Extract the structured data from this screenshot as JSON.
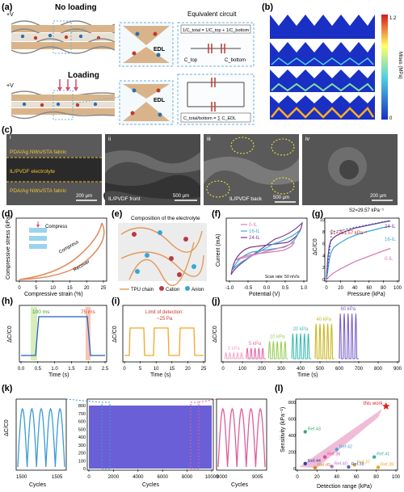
{
  "panel_labels": [
    "(a)",
    "(b)",
    "(c)",
    "(d)",
    "(e)",
    "(f)",
    "(g)",
    "(h)",
    "(i)",
    "(j)",
    "(k)",
    "(l)"
  ],
  "a": {
    "top_state": "No loading",
    "bottom_state": "Loading",
    "voltage": "+V",
    "edl": "EDL",
    "eq_title": "Equivalent circuit",
    "eq_formula": "1/C_total = 1/C_top + 1/C_bottom",
    "c_top": "C_top",
    "c_bottom": "C_bottom",
    "c_sum": "C_total/bottom = ∑ C_EDL"
  },
  "b": {
    "colorbar_title": "Mises (MPa)",
    "cb_max": "1.2",
    "cb_min": "0",
    "colors": {
      "high": "#d7191c",
      "mid": "#ffff66",
      "low": "#1a2fc4"
    }
  },
  "c": {
    "panels": [
      "i",
      "ii",
      "iii",
      "iv"
    ],
    "labels": {
      "top_fabric": "PDA/Ag NWs/STA fabric",
      "electrolyte": "IL/PVDF electrolyte",
      "bottom_fabric": "PDA/Ag NWs/STA fabric",
      "front": "IL/PVDF front",
      "back": "IL/PVDF back"
    },
    "scale_bars": [
      "200 μm",
      "500 μm",
      "500 μm",
      "200 μm"
    ]
  },
  "d": {
    "ylabel": "Compressive stress (kPa)",
    "xlabel": "Compressive strain (%)",
    "compress": "Compress",
    "compress2": "Compress",
    "recover": "Recover",
    "xticks": [
      "0",
      "5",
      "10",
      "15",
      "20",
      "25"
    ]
  },
  "e": {
    "title": "Composition of the electrolyte",
    "legend": [
      "TPU chain",
      "Cation",
      "Anion"
    ]
  },
  "chart_data": [
    {
      "id": "f",
      "type": "line",
      "xlabel": "Potential (V)",
      "ylabel": "Current (mA)",
      "xlim": [
        -1.0,
        1.0
      ],
      "xticks": [
        "-1.0",
        "-0.5",
        "0.0",
        "0.5",
        "1.0"
      ],
      "annotation": "Scan rate: 50 mV/s",
      "series": [
        {
          "name": "0-IL",
          "color": "#d77fb4"
        },
        {
          "name": "16-IL",
          "color": "#43a8d8"
        },
        {
          "name": "24-IL",
          "color": "#7b3d91"
        }
      ]
    },
    {
      "id": "g",
      "type": "line",
      "xlabel": "Pressure (kPa)",
      "ylabel": "ΔC/C0",
      "xlim": [
        0,
        100
      ],
      "ylim": [
        0,
        10
      ],
      "xticks": [
        "0",
        "20",
        "40",
        "60",
        "80",
        "100"
      ],
      "yticks": [
        "0",
        "2",
        "4",
        "6",
        "8",
        "10"
      ],
      "annotations": [
        "S2=29.57 kPa⁻¹",
        "S1=751.57 kPa⁻¹"
      ],
      "series": [
        {
          "name": "24-IL",
          "color": "#7b3d91",
          "x": [
            0,
            1,
            2,
            4,
            6,
            10,
            15,
            20,
            30,
            40,
            60,
            80,
            90
          ],
          "y": [
            0,
            1.8,
            3.6,
            5.6,
            6.4,
            7.0,
            7.4,
            7.7,
            8.2,
            8.6,
            9.1,
            9.6,
            9.8
          ]
        },
        {
          "name": "16-IL",
          "color": "#43a8d8",
          "x": [
            0,
            2,
            4,
            6,
            10,
            15,
            20,
            30,
            40,
            60,
            80,
            90
          ],
          "y": [
            0,
            1.6,
            3.2,
            4.4,
            5.3,
            5.8,
            6.2,
            6.9,
            7.4,
            8.1,
            8.7,
            8.9
          ]
        },
        {
          "name": "0-IL",
          "color": "#d77fb4",
          "x": [
            0,
            5,
            10,
            20,
            30,
            40,
            60,
            80,
            90
          ],
          "y": [
            0,
            0.6,
            1.1,
            1.8,
            2.4,
            3.0,
            3.9,
            4.8,
            5.2
          ]
        }
      ]
    },
    {
      "id": "h",
      "type": "line",
      "xlabel": "Time (s)",
      "ylabel": "ΔC/C0",
      "xlim": [
        0,
        2.5
      ],
      "xticks": [
        "0.0",
        "0.5",
        "1.0",
        "1.5",
        "2.0",
        "2.5"
      ],
      "annotations": [
        "100 ms",
        "75 ms"
      ],
      "series": [
        {
          "x": [
            0,
            0.45,
            0.55,
            1.75,
            1.85,
            2.5
          ],
          "y": [
            0,
            0,
            1,
            1,
            0,
            0
          ],
          "color": "#1f5fbf"
        }
      ]
    },
    {
      "id": "i",
      "type": "line",
      "xlabel": "Time (s)",
      "ylabel": "ΔC/C0",
      "xlim": [
        0,
        25
      ],
      "xticks": [
        "0",
        "5",
        "10",
        "15",
        "20",
        "25"
      ],
      "annotation": "Limit of detection: ~25 Pa",
      "series": [
        {
          "color": "#f5a623"
        }
      ]
    },
    {
      "id": "j",
      "type": "line",
      "xlabel": "Time (s)",
      "ylabel": "ΔC/C0",
      "xlim": [
        0,
        900
      ],
      "xticks": [
        "0",
        "100",
        "200",
        "300",
        "400",
        "500",
        "600",
        "700",
        "800",
        "900"
      ],
      "levels": [
        {
          "label": "3 kPa",
          "color": "#f2a9c9",
          "t0": 10,
          "amp": 0.12
        },
        {
          "label": "5 kPa",
          "color": "#e56ba7",
          "t0": 120,
          "amp": 0.22
        },
        {
          "label": "10 kPa",
          "color": "#9ccf5a",
          "t0": 235,
          "amp": 0.36
        },
        {
          "label": "20 kPa",
          "color": "#3dbdb0",
          "t0": 355,
          "amp": 0.52
        },
        {
          "label": "40 kPa",
          "color": "#c8b820",
          "t0": 475,
          "amp": 0.72
        },
        {
          "label": "60 kPa",
          "color": "#7b62c9",
          "t0": 600,
          "amp": 0.93
        }
      ]
    },
    {
      "id": "k",
      "type": "line",
      "ylabel": "ΔC/C0",
      "xlabel": "Cycles",
      "left": {
        "xticks": [
          "1500",
          "1505"
        ],
        "color": "#3a9bd5"
      },
      "middle": {
        "xticks": [
          "0",
          "2000",
          "4000",
          "6000",
          "8000",
          "10000"
        ],
        "yticks": [
          "0",
          "100",
          "200",
          "300",
          "400",
          "500",
          "600",
          "700",
          "800"
        ],
        "color": "#6a5fd6"
      },
      "right": {
        "xticks": [
          "9000",
          "9005"
        ],
        "color": "#e05c9c"
      }
    },
    {
      "id": "l",
      "type": "scatter",
      "xlabel": "Detection range (kPa)",
      "ylabel": "Sensitivity (kPa⁻¹)",
      "xlim": [
        0,
        100
      ],
      "ylim": [
        0,
        800
      ],
      "xticks": [
        "0",
        "20",
        "40",
        "60",
        "80",
        "100"
      ],
      "yticks": [
        "0",
        "200",
        "400",
        "600",
        "800"
      ],
      "points": [
        {
          "label": "this work",
          "x": 90,
          "y": 752,
          "color": "#e02020"
        },
        {
          "label": "Ref.43",
          "x": 8,
          "y": 445,
          "color": "#3aaa70"
        },
        {
          "label": "Ref.42",
          "x": 40,
          "y": 230,
          "color": "#4fa4d9"
        },
        {
          "label": "Ref.36",
          "x": 28,
          "y": 140,
          "color": "#d84a9a"
        },
        {
          "label": "Ref.41",
          "x": 78,
          "y": 140,
          "color": "#3aaaa0"
        },
        {
          "label": "Ref.44",
          "x": 8,
          "y": 60,
          "color": "#3040a0"
        },
        {
          "label": "Ref.37",
          "x": 58,
          "y": 45,
          "color": "#d8b020"
        },
        {
          "label": "Ref.40",
          "x": 35,
          "y": 25,
          "color": "#b070d0"
        },
        {
          "label": "Ref.38",
          "x": 52,
          "y": 20,
          "color": "#5a60c0"
        },
        {
          "label": "Ref.39",
          "x": 82,
          "y": 15,
          "color": "#f0a020"
        },
        {
          "label": "Ref.45",
          "x": 18,
          "y": 10,
          "color": "#e08030"
        }
      ]
    }
  ]
}
